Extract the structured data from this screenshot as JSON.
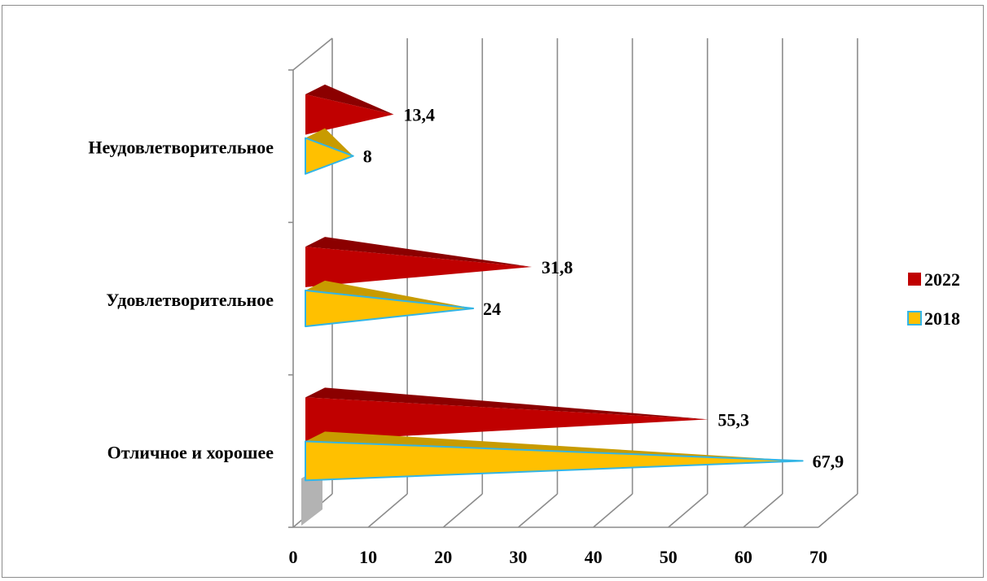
{
  "chart_data": {
    "type": "bar",
    "orientation": "horizontal",
    "style": "3d-cone",
    "categories": [
      "Отличное и хорошее",
      "Удовлетворительное",
      "Неудовлетворительное"
    ],
    "series": [
      {
        "name": "2022",
        "values": [
          55.3,
          31.8,
          13.4
        ],
        "value_labels": [
          "55,3",
          "31,8",
          "13,4"
        ],
        "color": "#c00000",
        "dark": "#8b0000"
      },
      {
        "name": "2018",
        "values": [
          67.9,
          24,
          8
        ],
        "value_labels": [
          "67,9",
          "24",
          "8"
        ],
        "color": "#ffc000",
        "dark": "#c89b00",
        "outline": "#33b5e5"
      }
    ],
    "x_ticks": [
      "0",
      "10",
      "20",
      "30",
      "40",
      "50",
      "60",
      "70"
    ],
    "xlim": [
      0,
      70
    ],
    "grid": true,
    "legend_position": "right"
  }
}
